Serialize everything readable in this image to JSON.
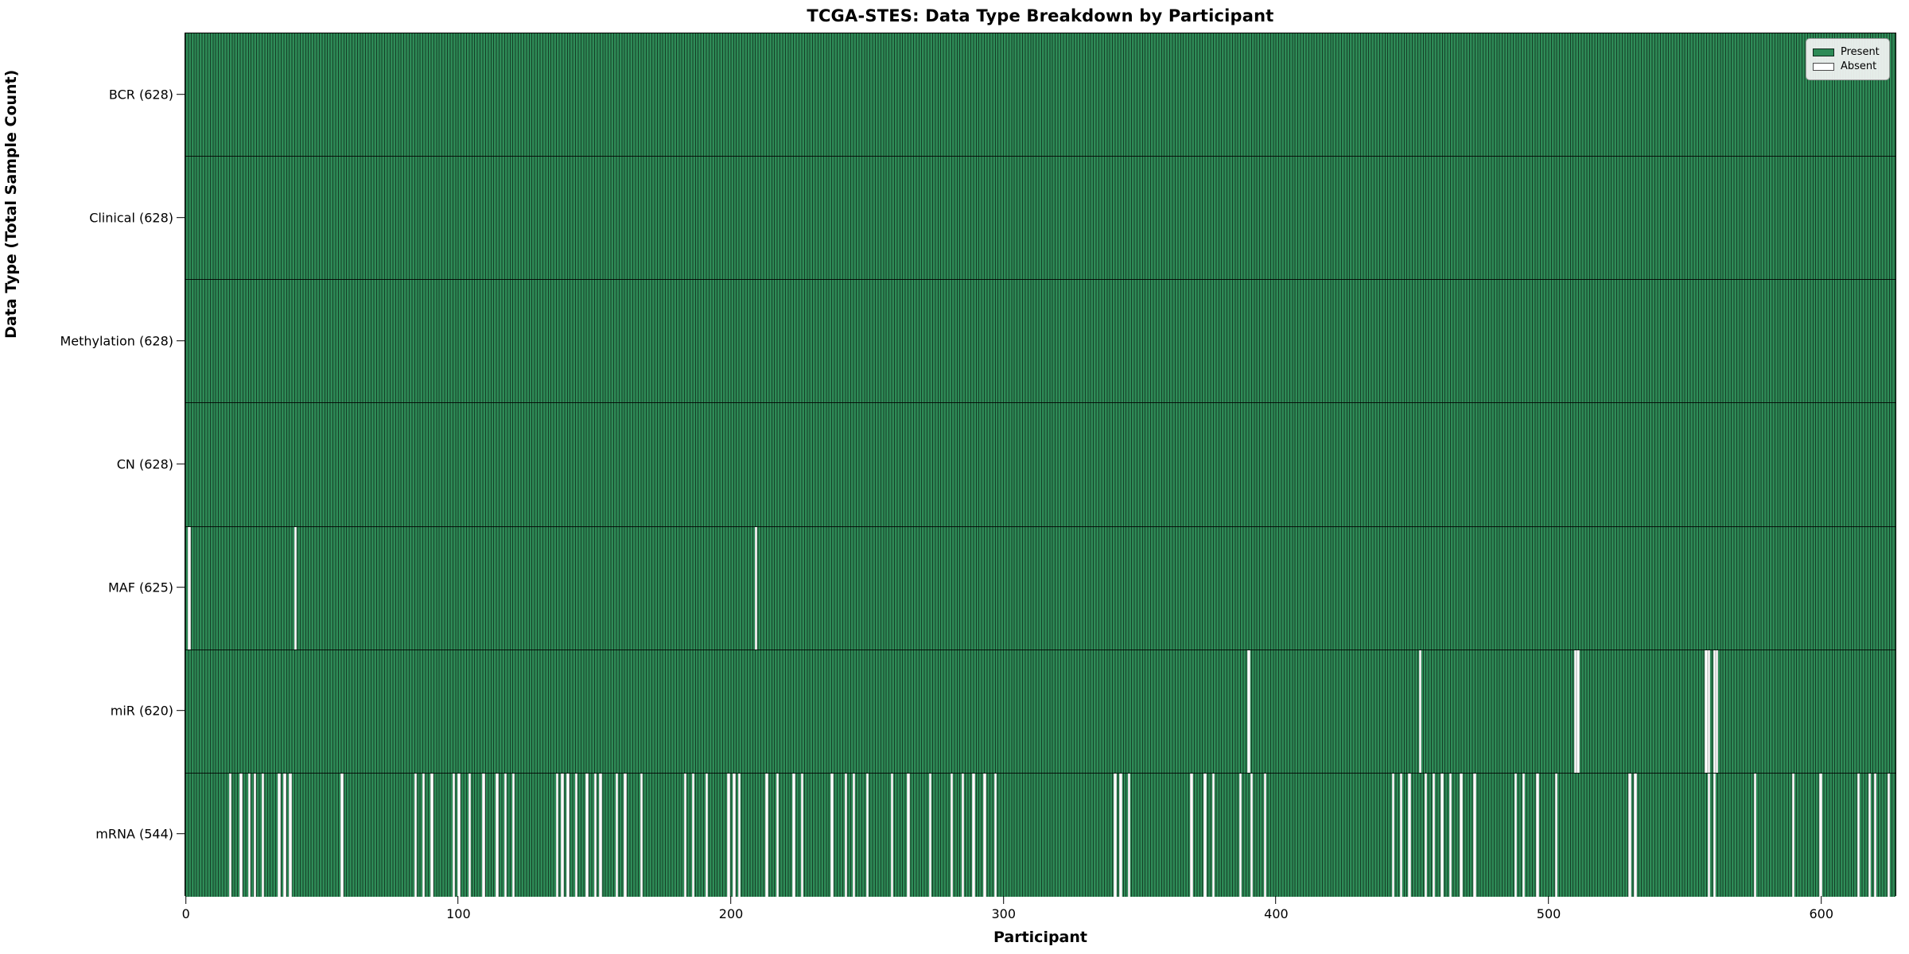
{
  "title": "TCGA-STES: Data Type Breakdown by Participant",
  "chart_data": {
    "type": "heatmap",
    "title": "TCGA-STES: Data Type Breakdown by Participant",
    "xlabel": "Participant",
    "ylabel": "Data Type (Total Sample Count)",
    "n_participants": 628,
    "x_range": [
      0,
      628
    ],
    "xticks": [
      0,
      100,
      200,
      300,
      400,
      500,
      600
    ],
    "grid": false,
    "legend_position": "upper right",
    "legend": [
      {
        "label": "Present",
        "color": "#2E8B57"
      },
      {
        "label": "Absent",
        "color": "#FFFFFF"
      }
    ],
    "colors": {
      "present": "#2E8B57",
      "absent": "#FFFFFF",
      "cell_edge": "#1C3B2A",
      "plot_border": "#000000"
    },
    "rows": [
      {
        "name": "BCR",
        "present_count": 628,
        "label": "BCR (628)",
        "absent_participants": []
      },
      {
        "name": "Clinical",
        "present_count": 628,
        "label": "Clinical (628)",
        "absent_participants": []
      },
      {
        "name": "Methylation",
        "present_count": 628,
        "label": "Methylation (628)",
        "absent_participants": []
      },
      {
        "name": "CN",
        "present_count": 628,
        "label": "CN (628)",
        "absent_participants": []
      },
      {
        "name": "MAF",
        "present_count": 625,
        "label": "MAF (625)",
        "absent_participants": [
          1,
          40,
          209
        ]
      },
      {
        "name": "miR",
        "present_count": 620,
        "label": "miR (620)",
        "absent_participants": [
          390,
          453,
          510,
          511,
          558,
          559,
          561,
          562
        ]
      },
      {
        "name": "mRNA",
        "present_count": 544,
        "label": "mRNA (544)",
        "absent_participants": [
          16,
          20,
          23,
          25,
          28,
          34,
          36,
          38,
          57,
          84,
          87,
          90,
          98,
          100,
          104,
          109,
          114,
          117,
          120,
          136,
          138,
          140,
          143,
          147,
          150,
          152,
          158,
          161,
          167,
          183,
          186,
          191,
          199,
          201,
          203,
          213,
          217,
          223,
          226,
          237,
          242,
          245,
          250,
          259,
          265,
          273,
          281,
          285,
          289,
          293,
          297,
          341,
          343,
          346,
          369,
          374,
          377,
          387,
          391,
          396,
          443,
          446,
          449,
          455,
          458,
          461,
          464,
          468,
          473,
          488,
          491,
          496,
          503,
          530,
          532,
          559,
          561,
          576,
          590,
          600,
          614,
          618,
          620,
          625
        ]
      }
    ]
  }
}
